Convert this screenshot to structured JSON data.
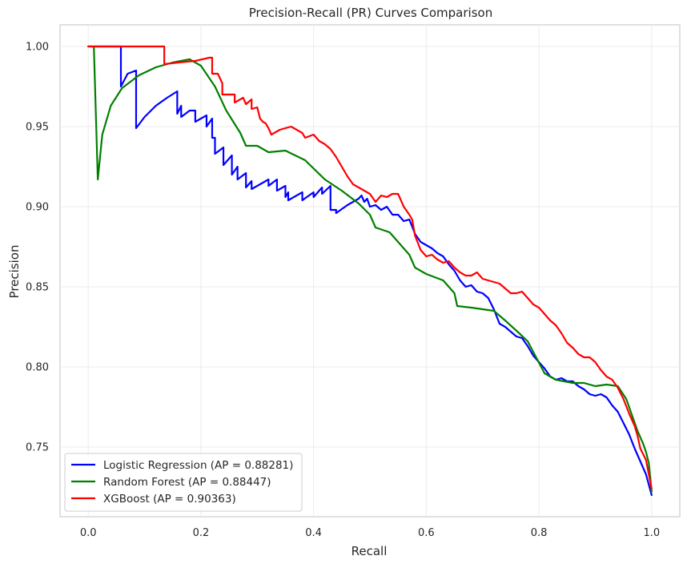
{
  "chart_data": {
    "type": "line",
    "title": "Precision-Recall (PR) Curves Comparison",
    "xlabel": "Recall",
    "ylabel": "Precision",
    "xlim": [
      -0.05,
      1.05
    ],
    "ylim": [
      0.7065,
      1.0135
    ],
    "x_ticks": [
      0.0,
      0.2,
      0.4,
      0.6,
      0.8,
      1.0
    ],
    "x_tick_labels": [
      "0.0",
      "0.2",
      "0.4",
      "0.6",
      "0.8",
      "1.0"
    ],
    "y_ticks": [
      0.75,
      0.8,
      0.85,
      0.9,
      0.95,
      1.0
    ],
    "y_tick_labels": [
      "0.75",
      "0.80",
      "0.85",
      "0.90",
      "0.95",
      "1.00"
    ],
    "grid": true,
    "legend_position": "lower-left",
    "series": [
      {
        "name": "Logistic Regression (AP = 0.88281)",
        "color": "#0000ff",
        "points": [
          [
            0.0,
            1.0
          ],
          [
            0.055,
            1.0
          ],
          [
            0.058,
            1.0
          ],
          [
            0.058,
            0.975
          ],
          [
            0.07,
            0.983
          ],
          [
            0.085,
            0.985
          ],
          [
            0.085,
            0.949
          ],
          [
            0.1,
            0.956
          ],
          [
            0.12,
            0.963
          ],
          [
            0.14,
            0.968
          ],
          [
            0.158,
            0.972
          ],
          [
            0.158,
            0.958
          ],
          [
            0.165,
            0.963
          ],
          [
            0.165,
            0.956
          ],
          [
            0.18,
            0.96
          ],
          [
            0.19,
            0.96
          ],
          [
            0.19,
            0.953
          ],
          [
            0.21,
            0.957
          ],
          [
            0.21,
            0.95
          ],
          [
            0.22,
            0.955
          ],
          [
            0.22,
            0.943
          ],
          [
            0.225,
            0.943
          ],
          [
            0.225,
            0.933
          ],
          [
            0.24,
            0.937
          ],
          [
            0.24,
            0.926
          ],
          [
            0.255,
            0.932
          ],
          [
            0.255,
            0.92
          ],
          [
            0.265,
            0.925
          ],
          [
            0.265,
            0.917
          ],
          [
            0.28,
            0.921
          ],
          [
            0.28,
            0.912
          ],
          [
            0.29,
            0.916
          ],
          [
            0.29,
            0.911
          ],
          [
            0.32,
            0.917
          ],
          [
            0.32,
            0.913
          ],
          [
            0.335,
            0.917
          ],
          [
            0.335,
            0.91
          ],
          [
            0.35,
            0.913
          ],
          [
            0.35,
            0.906
          ],
          [
            0.355,
            0.909
          ],
          [
            0.355,
            0.904
          ],
          [
            0.38,
            0.909
          ],
          [
            0.38,
            0.904
          ],
          [
            0.4,
            0.909
          ],
          [
            0.4,
            0.906
          ],
          [
            0.415,
            0.912
          ],
          [
            0.415,
            0.908
          ],
          [
            0.43,
            0.913
          ],
          [
            0.43,
            0.898
          ],
          [
            0.44,
            0.898
          ],
          [
            0.44,
            0.896
          ],
          [
            0.46,
            0.901
          ],
          [
            0.48,
            0.905
          ],
          [
            0.485,
            0.907
          ],
          [
            0.49,
            0.903
          ],
          [
            0.495,
            0.905
          ],
          [
            0.5,
            0.9
          ],
          [
            0.51,
            0.901
          ],
          [
            0.52,
            0.898
          ],
          [
            0.53,
            0.9
          ],
          [
            0.54,
            0.895
          ],
          [
            0.55,
            0.895
          ],
          [
            0.56,
            0.891
          ],
          [
            0.57,
            0.892
          ],
          [
            0.58,
            0.883
          ],
          [
            0.59,
            0.878
          ],
          [
            0.6,
            0.876
          ],
          [
            0.61,
            0.874
          ],
          [
            0.62,
            0.871
          ],
          [
            0.63,
            0.869
          ],
          [
            0.64,
            0.864
          ],
          [
            0.65,
            0.86
          ],
          [
            0.66,
            0.854
          ],
          [
            0.67,
            0.85
          ],
          [
            0.68,
            0.851
          ],
          [
            0.69,
            0.847
          ],
          [
            0.7,
            0.846
          ],
          [
            0.71,
            0.843
          ],
          [
            0.72,
            0.836
          ],
          [
            0.73,
            0.827
          ],
          [
            0.74,
            0.825
          ],
          [
            0.75,
            0.822
          ],
          [
            0.76,
            0.819
          ],
          [
            0.77,
            0.818
          ],
          [
            0.78,
            0.813
          ],
          [
            0.79,
            0.807
          ],
          [
            0.8,
            0.803
          ],
          [
            0.81,
            0.799
          ],
          [
            0.82,
            0.794
          ],
          [
            0.83,
            0.792
          ],
          [
            0.84,
            0.793
          ],
          [
            0.85,
            0.791
          ],
          [
            0.86,
            0.791
          ],
          [
            0.87,
            0.788
          ],
          [
            0.88,
            0.786
          ],
          [
            0.89,
            0.783
          ],
          [
            0.9,
            0.782
          ],
          [
            0.91,
            0.783
          ],
          [
            0.92,
            0.781
          ],
          [
            0.93,
            0.776
          ],
          [
            0.94,
            0.772
          ],
          [
            0.95,
            0.765
          ],
          [
            0.96,
            0.758
          ],
          [
            0.97,
            0.749
          ],
          [
            0.98,
            0.741
          ],
          [
            0.99,
            0.733
          ],
          [
            1.0,
            0.72
          ]
        ]
      },
      {
        "name": "Random Forest (AP = 0.88447)",
        "color": "#008000",
        "points": [
          [
            0.01,
            1.0
          ],
          [
            0.017,
            0.917
          ],
          [
            0.025,
            0.945
          ],
          [
            0.04,
            0.963
          ],
          [
            0.06,
            0.974
          ],
          [
            0.09,
            0.982
          ],
          [
            0.12,
            0.987
          ],
          [
            0.15,
            0.99
          ],
          [
            0.18,
            0.992
          ],
          [
            0.2,
            0.988
          ],
          [
            0.225,
            0.975
          ],
          [
            0.245,
            0.96
          ],
          [
            0.27,
            0.946
          ],
          [
            0.28,
            0.938
          ],
          [
            0.3,
            0.938
          ],
          [
            0.32,
            0.934
          ],
          [
            0.35,
            0.935
          ],
          [
            0.385,
            0.929
          ],
          [
            0.42,
            0.917
          ],
          [
            0.45,
            0.91
          ],
          [
            0.48,
            0.902
          ],
          [
            0.5,
            0.895
          ],
          [
            0.51,
            0.887
          ],
          [
            0.535,
            0.884
          ],
          [
            0.57,
            0.87
          ],
          [
            0.58,
            0.862
          ],
          [
            0.6,
            0.858
          ],
          [
            0.63,
            0.854
          ],
          [
            0.65,
            0.846
          ],
          [
            0.655,
            0.838
          ],
          [
            0.68,
            0.837
          ],
          [
            0.72,
            0.835
          ],
          [
            0.74,
            0.829
          ],
          [
            0.765,
            0.821
          ],
          [
            0.78,
            0.816
          ],
          [
            0.795,
            0.806
          ],
          [
            0.81,
            0.796
          ],
          [
            0.83,
            0.792
          ],
          [
            0.86,
            0.79
          ],
          [
            0.88,
            0.79
          ],
          [
            0.9,
            0.788
          ],
          [
            0.92,
            0.789
          ],
          [
            0.94,
            0.788
          ],
          [
            0.955,
            0.78
          ],
          [
            0.965,
            0.77
          ],
          [
            0.975,
            0.76
          ],
          [
            0.985,
            0.752
          ],
          [
            0.99,
            0.747
          ],
          [
            0.995,
            0.74
          ],
          [
            1.0,
            0.722
          ]
        ]
      },
      {
        "name": "XGBoost (AP = 0.90363)",
        "color": "#ff0000",
        "points": [
          [
            0.0,
            1.0
          ],
          [
            0.135,
            1.0
          ],
          [
            0.135,
            0.989
          ],
          [
            0.16,
            0.99
          ],
          [
            0.19,
            0.991
          ],
          [
            0.215,
            0.993
          ],
          [
            0.22,
            0.993
          ],
          [
            0.22,
            0.983
          ],
          [
            0.23,
            0.983
          ],
          [
            0.238,
            0.977
          ],
          [
            0.238,
            0.97
          ],
          [
            0.26,
            0.97
          ],
          [
            0.26,
            0.965
          ],
          [
            0.275,
            0.968
          ],
          [
            0.28,
            0.964
          ],
          [
            0.29,
            0.967
          ],
          [
            0.29,
            0.961
          ],
          [
            0.3,
            0.962
          ],
          [
            0.305,
            0.955
          ],
          [
            0.31,
            0.953
          ],
          [
            0.315,
            0.952
          ],
          [
            0.32,
            0.949
          ],
          [
            0.325,
            0.945
          ],
          [
            0.34,
            0.948
          ],
          [
            0.36,
            0.95
          ],
          [
            0.38,
            0.946
          ],
          [
            0.385,
            0.943
          ],
          [
            0.4,
            0.945
          ],
          [
            0.41,
            0.941
          ],
          [
            0.42,
            0.939
          ],
          [
            0.43,
            0.936
          ],
          [
            0.44,
            0.931
          ],
          [
            0.45,
            0.925
          ],
          [
            0.46,
            0.919
          ],
          [
            0.47,
            0.914
          ],
          [
            0.48,
            0.912
          ],
          [
            0.49,
            0.91
          ],
          [
            0.5,
            0.908
          ],
          [
            0.51,
            0.903
          ],
          [
            0.52,
            0.907
          ],
          [
            0.53,
            0.906
          ],
          [
            0.54,
            0.908
          ],
          [
            0.55,
            0.908
          ],
          [
            0.56,
            0.9
          ],
          [
            0.57,
            0.895
          ],
          [
            0.575,
            0.892
          ],
          [
            0.58,
            0.882
          ],
          [
            0.59,
            0.873
          ],
          [
            0.6,
            0.869
          ],
          [
            0.61,
            0.87
          ],
          [
            0.62,
            0.867
          ],
          [
            0.63,
            0.865
          ],
          [
            0.64,
            0.866
          ],
          [
            0.65,
            0.862
          ],
          [
            0.66,
            0.859
          ],
          [
            0.67,
            0.857
          ],
          [
            0.68,
            0.857
          ],
          [
            0.69,
            0.859
          ],
          [
            0.7,
            0.855
          ],
          [
            0.71,
            0.854
          ],
          [
            0.72,
            0.853
          ],
          [
            0.73,
            0.852
          ],
          [
            0.74,
            0.849
          ],
          [
            0.75,
            0.846
          ],
          [
            0.76,
            0.846
          ],
          [
            0.77,
            0.847
          ],
          [
            0.78,
            0.843
          ],
          [
            0.79,
            0.839
          ],
          [
            0.8,
            0.837
          ],
          [
            0.81,
            0.833
          ],
          [
            0.82,
            0.829
          ],
          [
            0.83,
            0.826
          ],
          [
            0.84,
            0.821
          ],
          [
            0.85,
            0.815
          ],
          [
            0.86,
            0.812
          ],
          [
            0.87,
            0.808
          ],
          [
            0.88,
            0.806
          ],
          [
            0.89,
            0.806
          ],
          [
            0.9,
            0.803
          ],
          [
            0.91,
            0.798
          ],
          [
            0.92,
            0.794
          ],
          [
            0.93,
            0.792
          ],
          [
            0.94,
            0.787
          ],
          [
            0.95,
            0.78
          ],
          [
            0.96,
            0.771
          ],
          [
            0.97,
            0.763
          ],
          [
            0.975,
            0.757
          ],
          [
            0.98,
            0.749
          ],
          [
            0.99,
            0.742
          ],
          [
            1.0,
            0.724
          ]
        ]
      }
    ]
  }
}
